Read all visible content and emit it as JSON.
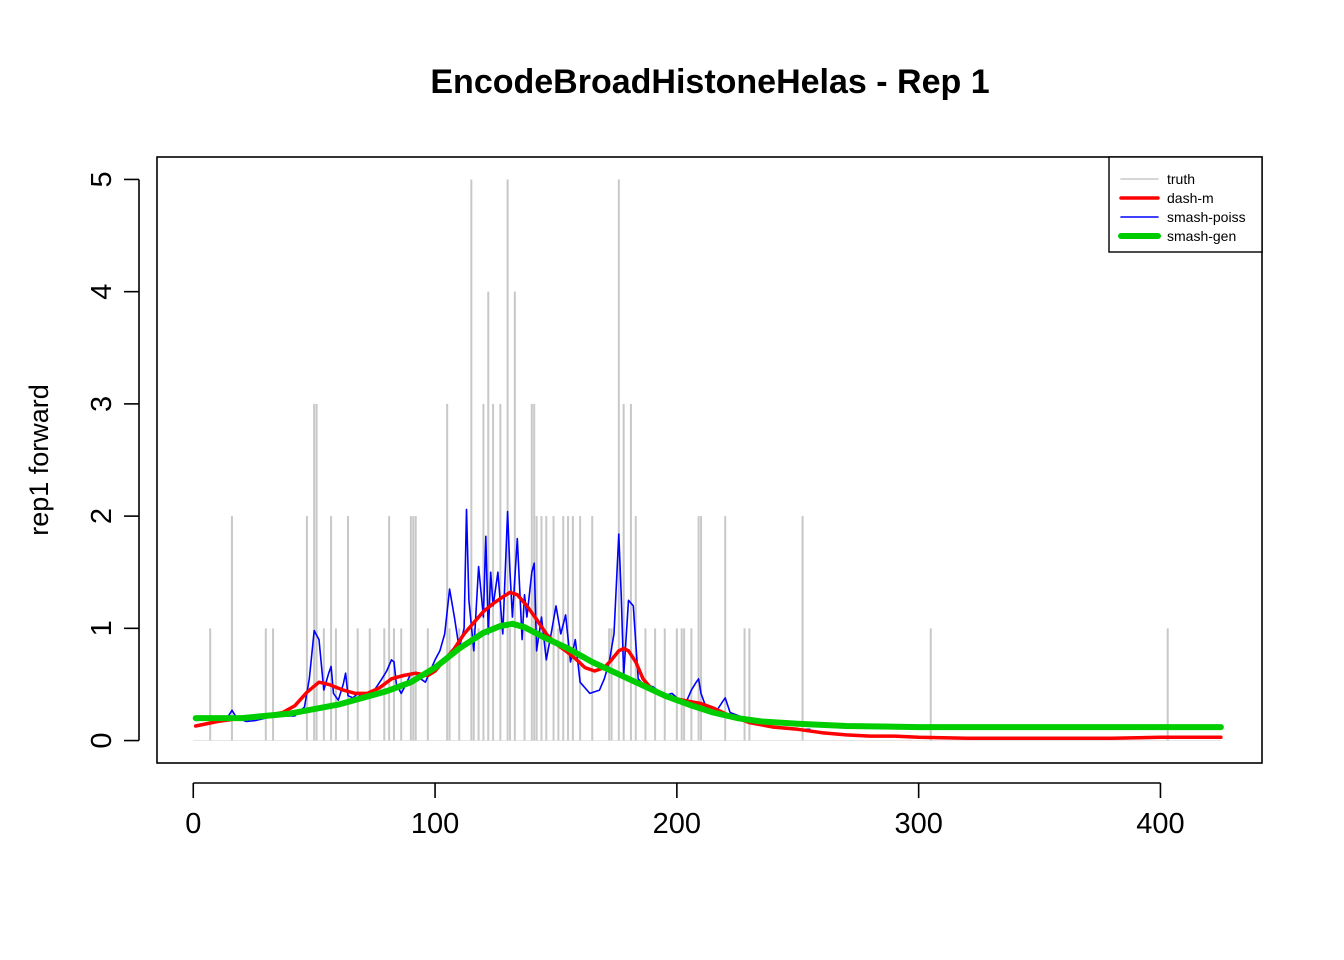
{
  "chart_data": {
    "type": "line",
    "title": "EncodeBroadHistoneHelas - Rep 1",
    "xlabel": "",
    "ylabel": "rep1 forward",
    "xlim": [
      -15,
      442
    ],
    "ylim": [
      -0.2,
      5.2
    ],
    "xticks": [
      0,
      100,
      200,
      300,
      400
    ],
    "yticks": [
      0,
      1,
      2,
      3,
      4,
      5
    ],
    "xtick_labels": [
      "0",
      "100",
      "200",
      "300",
      "400"
    ],
    "ytick_labels": [
      "0",
      "1",
      "2",
      "3",
      "4",
      "5"
    ],
    "grid": false,
    "legend": {
      "position": "top-right",
      "entries": [
        "truth",
        "dash-m",
        "smash-poiss",
        "smash-gen"
      ]
    },
    "colors": {
      "truth": "#c8c8c8",
      "dash-m": "#ff0000",
      "smash-poiss": "#0000ff",
      "smash-gen": "#00cd00"
    },
    "truth_spikes": {
      "x": [
        7,
        16,
        30,
        33,
        47,
        50,
        51,
        54,
        57,
        59,
        64,
        68,
        73,
        79,
        81,
        83,
        86,
        90,
        91,
        92,
        97,
        105,
        106,
        110,
        115,
        116,
        118,
        120,
        122,
        124,
        127,
        130,
        131,
        133,
        137,
        140,
        141,
        142,
        144,
        146,
        149,
        151,
        153,
        155,
        157,
        160,
        165,
        172,
        173,
        176,
        178,
        181,
        183,
        187,
        191,
        195,
        200,
        202,
        203,
        206,
        209,
        210,
        220,
        228,
        230,
        252,
        305,
        403
      ],
      "y": [
        1,
        2,
        1,
        1,
        2,
        3,
        3,
        1,
        2,
        1,
        2,
        1,
        1,
        1,
        2,
        1,
        1,
        2,
        2,
        2,
        1,
        3,
        1,
        1,
        5,
        1,
        1,
        3,
        4,
        3,
        3,
        5,
        1,
        4,
        1,
        3,
        3,
        2,
        2,
        2,
        2,
        1,
        2,
        2,
        2,
        2,
        2,
        1,
        1,
        5,
        3,
        3,
        2,
        1,
        1,
        1,
        1,
        1,
        1,
        1,
        2,
        2,
        2,
        1,
        1,
        2,
        1,
        1
      ]
    },
    "series": [
      {
        "name": "dash-m",
        "x": [
          1,
          10,
          20,
          30,
          37,
          42,
          47,
          52,
          56,
          62,
          67,
          72,
          77,
          82,
          87,
          92,
          97,
          100,
          104,
          108,
          112,
          116,
          120,
          124,
          128,
          131,
          134,
          138,
          142,
          146,
          150,
          154,
          158,
          162,
          166,
          170,
          173,
          176,
          178,
          180,
          183,
          186,
          190,
          195,
          200,
          205,
          210,
          215,
          220,
          225,
          230,
          240,
          250,
          260,
          270,
          280,
          290,
          300,
          320,
          350,
          380,
          400,
          425
        ],
        "y": [
          0.13,
          0.17,
          0.2,
          0.22,
          0.25,
          0.31,
          0.43,
          0.52,
          0.5,
          0.45,
          0.42,
          0.42,
          0.47,
          0.55,
          0.58,
          0.6,
          0.58,
          0.62,
          0.72,
          0.82,
          0.95,
          1.05,
          1.15,
          1.22,
          1.28,
          1.32,
          1.3,
          1.2,
          1.08,
          0.95,
          0.86,
          0.8,
          0.73,
          0.65,
          0.62,
          0.65,
          0.72,
          0.8,
          0.82,
          0.8,
          0.7,
          0.55,
          0.45,
          0.4,
          0.37,
          0.35,
          0.33,
          0.29,
          0.24,
          0.2,
          0.16,
          0.12,
          0.1,
          0.07,
          0.05,
          0.04,
          0.04,
          0.03,
          0.02,
          0.02,
          0.02,
          0.03,
          0.03
        ]
      },
      {
        "name": "smash-poiss",
        "x": [
          1,
          8,
          14,
          16,
          18,
          22,
          26,
          30,
          34,
          38,
          42,
          46,
          48,
          50,
          52,
          54,
          56,
          57,
          58,
          60,
          62,
          63,
          64,
          66,
          68,
          70,
          74,
          78,
          80,
          82,
          83,
          84,
          86,
          88,
          90,
          92,
          94,
          96,
          98,
          100,
          102,
          104,
          106,
          108,
          110,
          112,
          113,
          114,
          116,
          118,
          120,
          121,
          122,
          123,
          124,
          126,
          128,
          130,
          131,
          132,
          134,
          136,
          137,
          138,
          140,
          141,
          142,
          144,
          146,
          148,
          150,
          152,
          154,
          156,
          158,
          160,
          164,
          168,
          170,
          172,
          174,
          176,
          177,
          178,
          180,
          182,
          184,
          186,
          190,
          195,
          198,
          200,
          204,
          206,
          208,
          209,
          210,
          212,
          216,
          219,
          220,
          222,
          228,
          232,
          240,
          250,
          255
        ],
        "y": [
          0.18,
          0.19,
          0.2,
          0.27,
          0.2,
          0.17,
          0.18,
          0.2,
          0.24,
          0.22,
          0.22,
          0.3,
          0.55,
          0.98,
          0.9,
          0.45,
          0.6,
          0.66,
          0.42,
          0.36,
          0.5,
          0.6,
          0.4,
          0.38,
          0.42,
          0.38,
          0.42,
          0.55,
          0.62,
          0.72,
          0.7,
          0.5,
          0.42,
          0.5,
          0.6,
          0.6,
          0.55,
          0.52,
          0.62,
          0.72,
          0.8,
          0.95,
          1.35,
          1.1,
          0.82,
          1.0,
          2.06,
          1.25,
          0.8,
          1.55,
          1.1,
          1.82,
          0.95,
          1.5,
          1.2,
          1.5,
          0.95,
          2.04,
          1.5,
          1.1,
          1.8,
          0.9,
          1.3,
          1.1,
          1.5,
          1.58,
          0.8,
          1.1,
          0.72,
          0.95,
          1.2,
          0.95,
          1.12,
          0.7,
          0.9,
          0.52,
          0.42,
          0.45,
          0.55,
          0.7,
          0.95,
          1.84,
          1.3,
          0.58,
          1.25,
          1.2,
          0.55,
          0.5,
          0.48,
          0.4,
          0.42,
          0.38,
          0.35,
          0.45,
          0.52,
          0.55,
          0.42,
          0.3,
          0.25,
          0.35,
          0.38,
          0.25,
          0.2,
          0.15,
          0.12,
          0.1,
          0.1
        ]
      },
      {
        "name": "smash-gen",
        "x": [
          1,
          20,
          40,
          60,
          80,
          90,
          100,
          110,
          120,
          127,
          132,
          137,
          145,
          155,
          165,
          175,
          185,
          195,
          205,
          215,
          225,
          235,
          250,
          270,
          300,
          350,
          400,
          425
        ],
        "y": [
          0.2,
          0.2,
          0.24,
          0.32,
          0.44,
          0.52,
          0.65,
          0.82,
          0.96,
          1.02,
          1.04,
          1.01,
          0.92,
          0.82,
          0.7,
          0.6,
          0.5,
          0.4,
          0.32,
          0.25,
          0.2,
          0.17,
          0.15,
          0.13,
          0.12,
          0.12,
          0.12,
          0.12
        ]
      }
    ]
  }
}
